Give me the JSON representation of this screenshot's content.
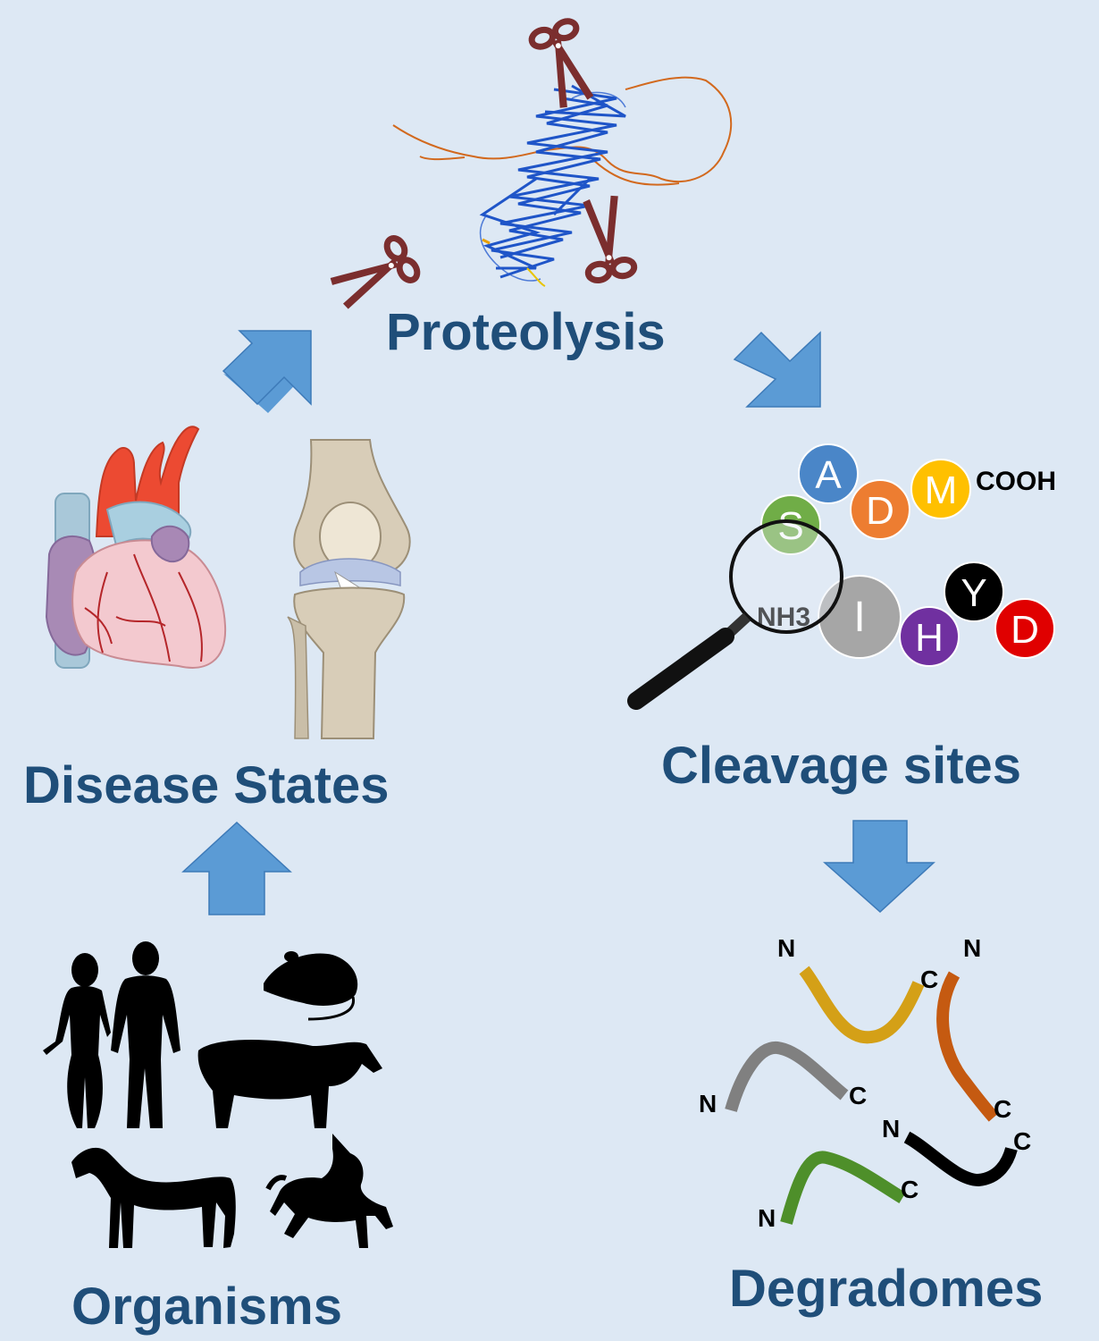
{
  "labels": {
    "proteolysis": "Proteolysis",
    "disease_states": "Disease States",
    "cleavage_sites": "Cleavage sites",
    "organisms": "Organisms",
    "degradomes": "Degradomes"
  },
  "peptide": {
    "residues": [
      "S",
      "A",
      "D",
      "M",
      "I",
      "H",
      "Y",
      "D"
    ],
    "n_terminus": "NH3",
    "c_terminus": "COOH"
  },
  "fragment_ends": {
    "n": "N",
    "c": "C"
  },
  "colors": {
    "background": "#dde8f4",
    "title": "#1f4e79",
    "arrow": "#5b9bd5",
    "residue_S": "#70ad47",
    "residue_A": "#4a86c8",
    "residue_D_orange": "#ed7d31",
    "residue_M": "#ffc000",
    "residue_I": "#a6a6a6",
    "residue_H": "#7030a0",
    "residue_Y": "#000000",
    "residue_D_red": "#e00000",
    "fragment_yellow": "#d4a017",
    "fragment_orange": "#c55a11",
    "fragment_gray": "#808080",
    "fragment_black": "#000000",
    "fragment_green": "#4e8f2a"
  }
}
